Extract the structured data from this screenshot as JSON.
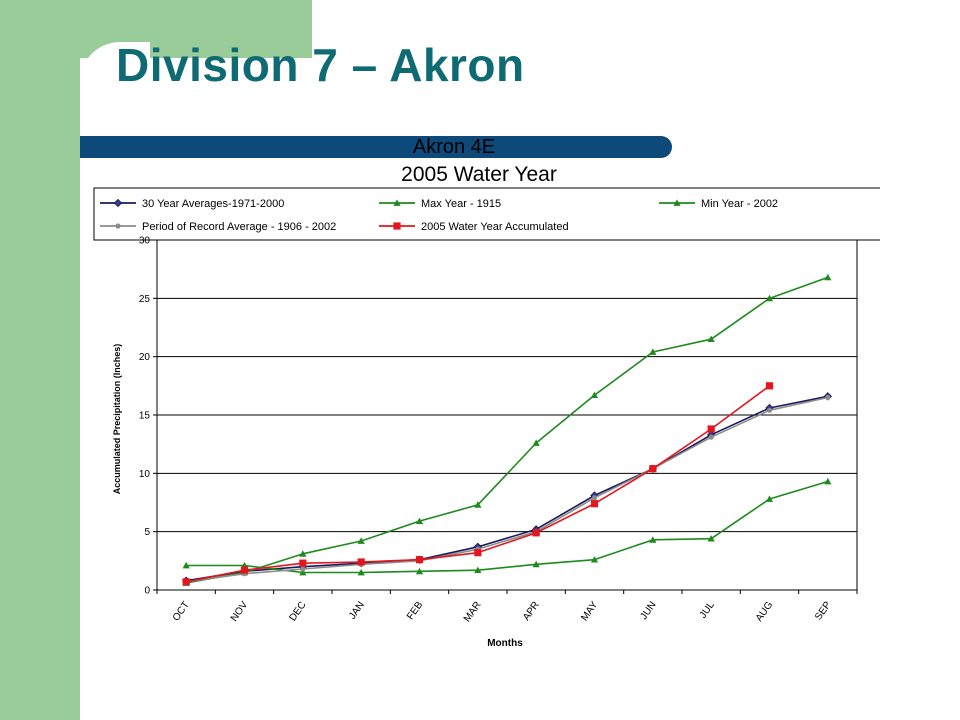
{
  "slide": {
    "title": "Division 7 – Akron"
  },
  "colors": {
    "sidebar": "#99cc99",
    "title_text": "#0f6b73",
    "title_band": "#0d4a7a",
    "series_30yr": "#1a1a5e",
    "series_max": "#1e8a1e",
    "series_min": "#1e8a1e",
    "series_por": "#8c8c8c",
    "series_2005": "#e3161d"
  },
  "chart_data": {
    "type": "line",
    "title": "Akron 4E",
    "subtitle": "2005 Water Year",
    "xlabel": "Months",
    "ylabel": "Accumulated Precipitation (Inches)",
    "categories": [
      "OCT",
      "NOV",
      "DEC",
      "JAN",
      "FEB",
      "MAR",
      "APR",
      "MAY",
      "JUN",
      "JUL",
      "AUG",
      "SEP"
    ],
    "ylim": [
      0,
      30
    ],
    "yticks": [
      0,
      5,
      10,
      15,
      20,
      25,
      30
    ],
    "grid": true,
    "legend_position": "top",
    "series": [
      {
        "name": "30 Year Averages-1971-2000",
        "marker": "diamond",
        "color": "#1a1a5e",
        "values": [
          0.8,
          1.6,
          2.0,
          2.3,
          2.6,
          3.7,
          5.2,
          8.1,
          10.4,
          13.3,
          15.6,
          16.6
        ]
      },
      {
        "name": "Max Year - 1915",
        "marker": "triangle",
        "color": "#1e8a1e",
        "values": [
          0.6,
          1.5,
          3.1,
          4.2,
          5.9,
          7.3,
          12.6,
          16.7,
          20.4,
          21.5,
          25.0,
          26.8
        ]
      },
      {
        "name": "Min Year - 2002",
        "marker": "triangle",
        "color": "#1e8a1e",
        "values": [
          2.1,
          2.1,
          1.5,
          1.5,
          1.6,
          1.7,
          2.2,
          2.6,
          4.3,
          4.4,
          7.8,
          9.3
        ]
      },
      {
        "name": "Period of Record Average - 1906 - 2002",
        "marker": "circle",
        "color": "#8c8c8c",
        "values": [
          0.7,
          1.4,
          1.8,
          2.2,
          2.5,
          3.5,
          5.0,
          7.9,
          10.4,
          13.1,
          15.4,
          16.5
        ]
      },
      {
        "name": "2005 Water Year Accumulated",
        "marker": "square",
        "color": "#e3161d",
        "values": [
          0.7,
          1.7,
          2.3,
          2.4,
          2.6,
          3.2,
          4.9,
          7.4,
          10.4,
          13.8,
          17.5,
          null
        ]
      }
    ]
  }
}
